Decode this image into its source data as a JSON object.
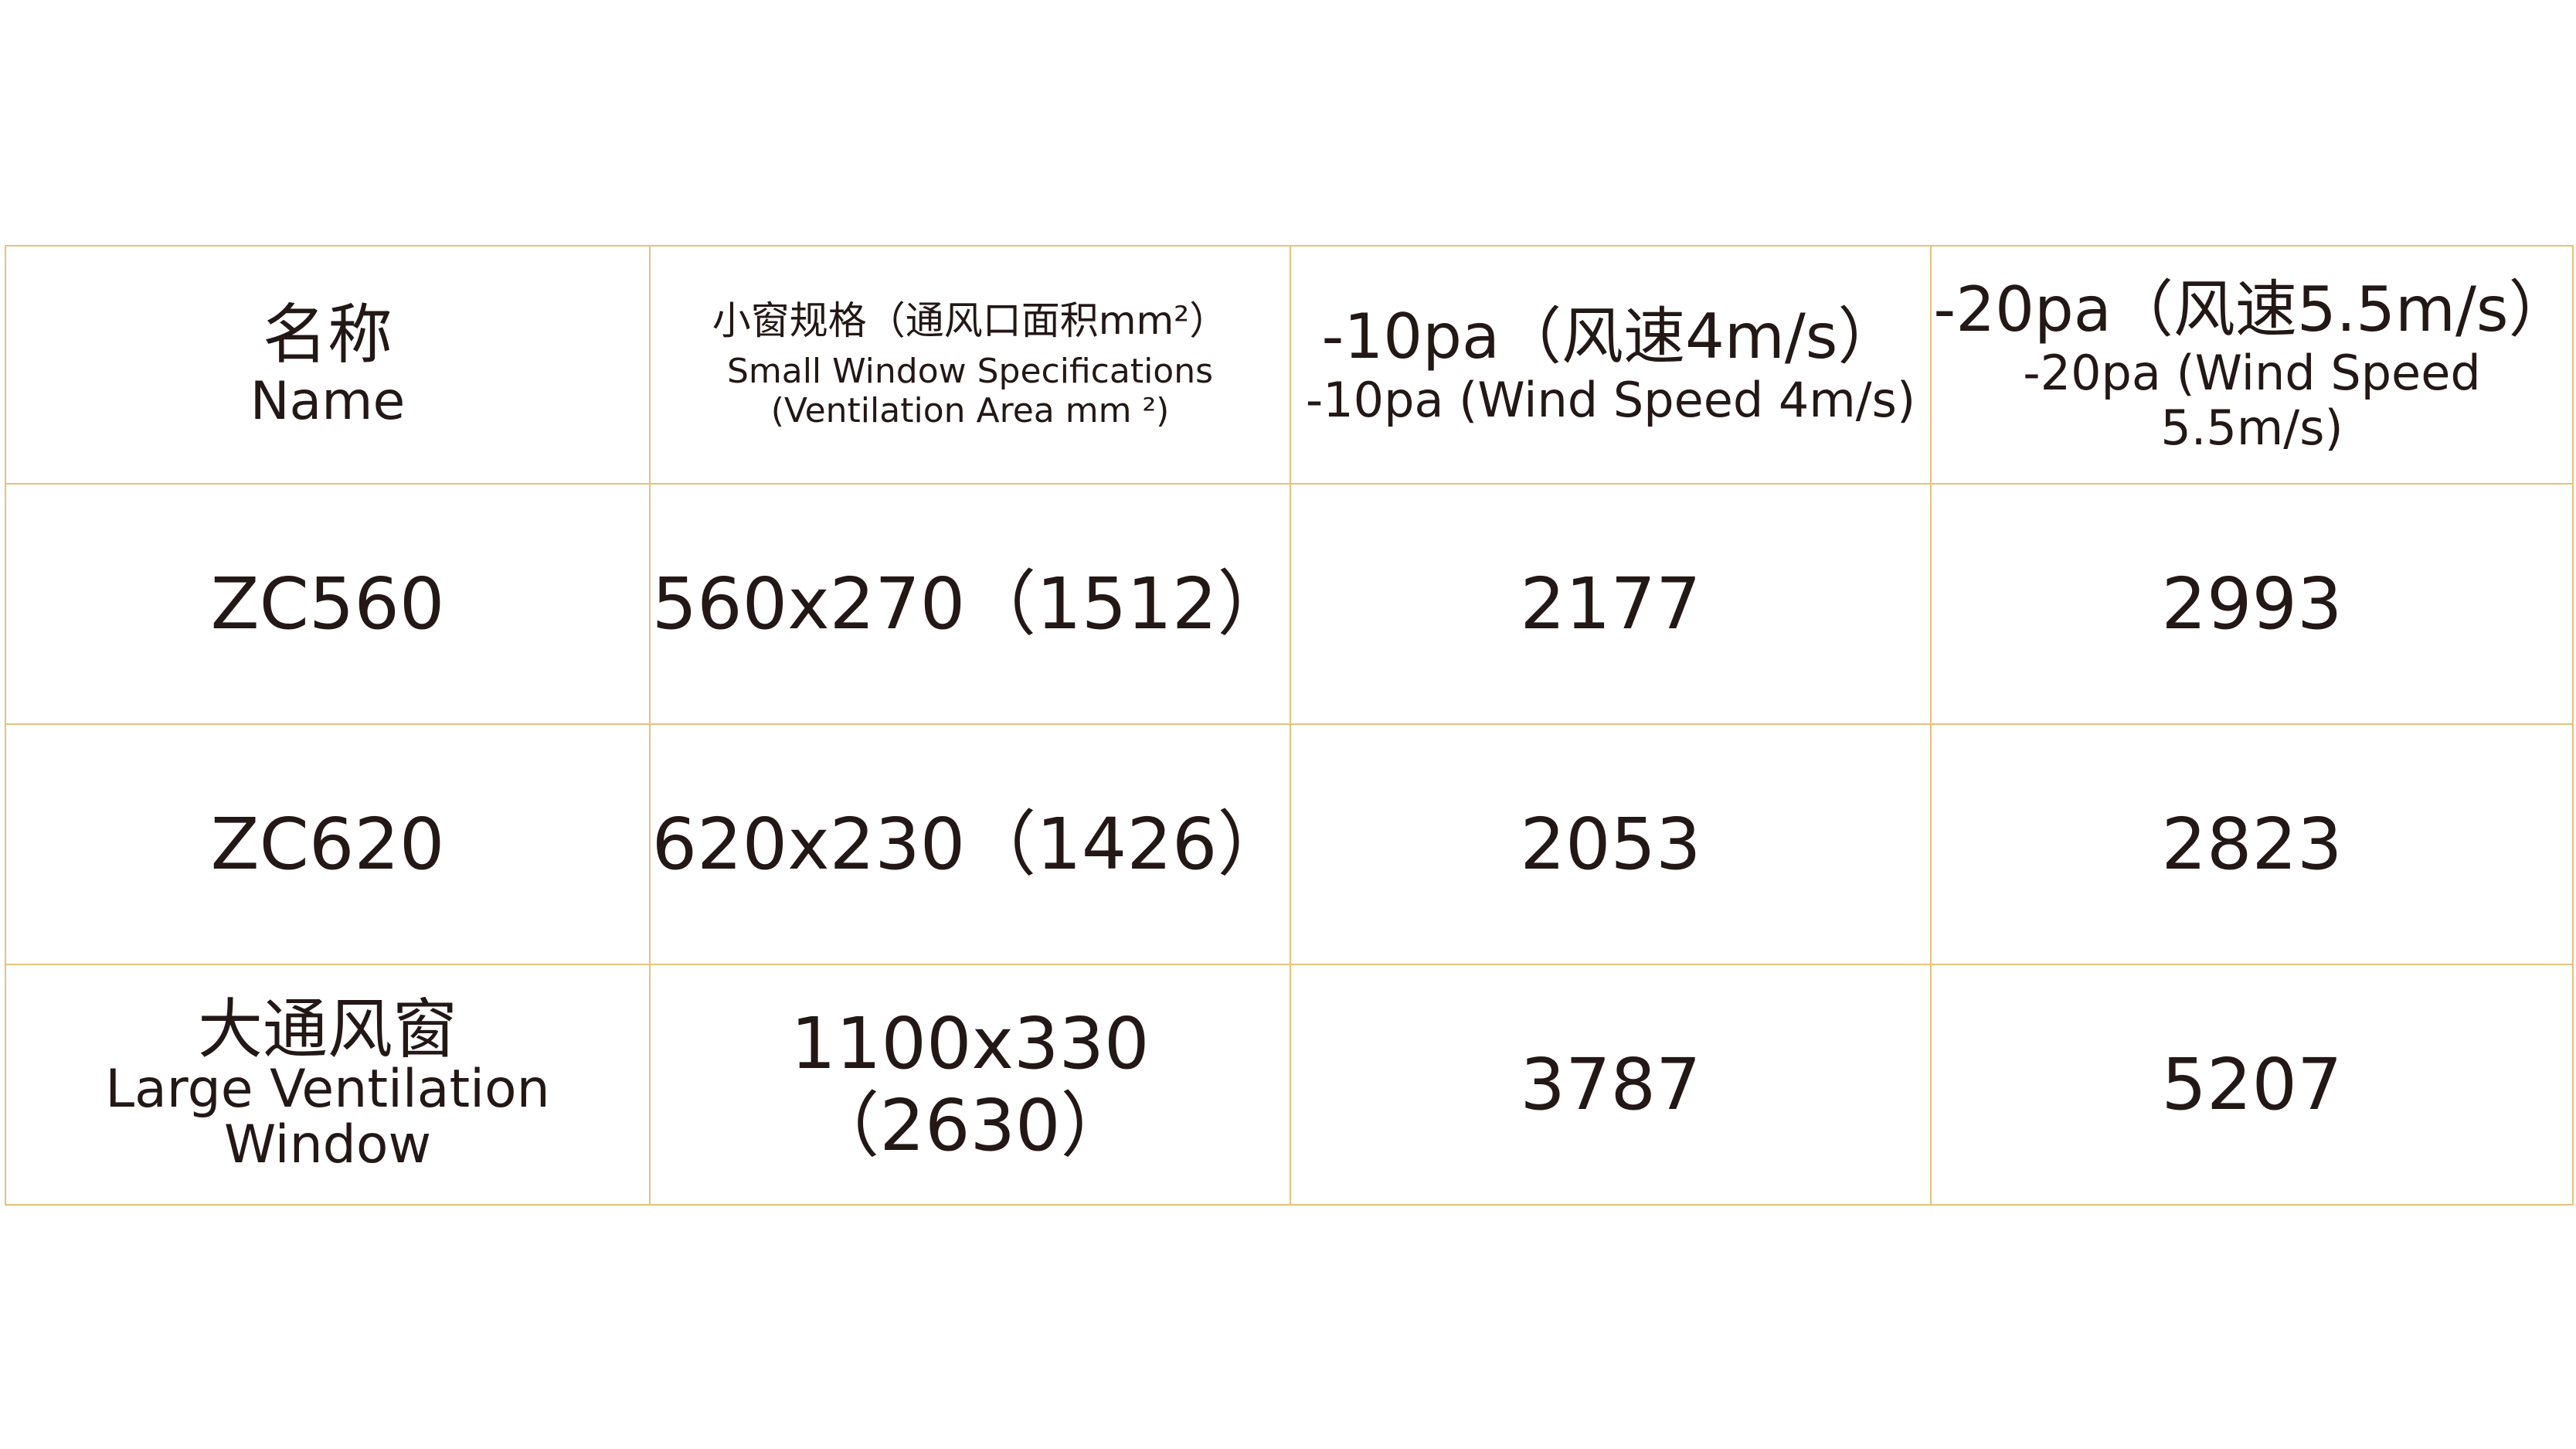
{
  "header": {
    "name_zh": "名称",
    "name_en": "Name",
    "spec_zh": "小窗规格（通风口面积mm²）",
    "spec_en_1": "Small Window Specifications",
    "spec_en_2": "(Ventilation Area mm ²)",
    "p10_zh": "-10pa（风速4m/s）",
    "p10_en": "-10pa (Wind Speed 4m/s)",
    "p20_zh": "-20pa（风速5.5m/s）",
    "p20_en": "-20pa (Wind Speed 5.5m/s)"
  },
  "rows": [
    {
      "name": "ZC560",
      "spec": "560x270（1512）",
      "p10": "2177",
      "p20": "2993"
    },
    {
      "name": "ZC620",
      "spec": "620x230（1426）",
      "p10": "2053",
      "p20": "2823"
    },
    {
      "name_zh": "大通风窗",
      "name_en": "Large Ventilation Window",
      "spec": "1100x330（2630）",
      "p10": "3787",
      "p20": "5207"
    }
  ],
  "colors": {
    "border": "#e6c27a",
    "text": "#231815"
  }
}
